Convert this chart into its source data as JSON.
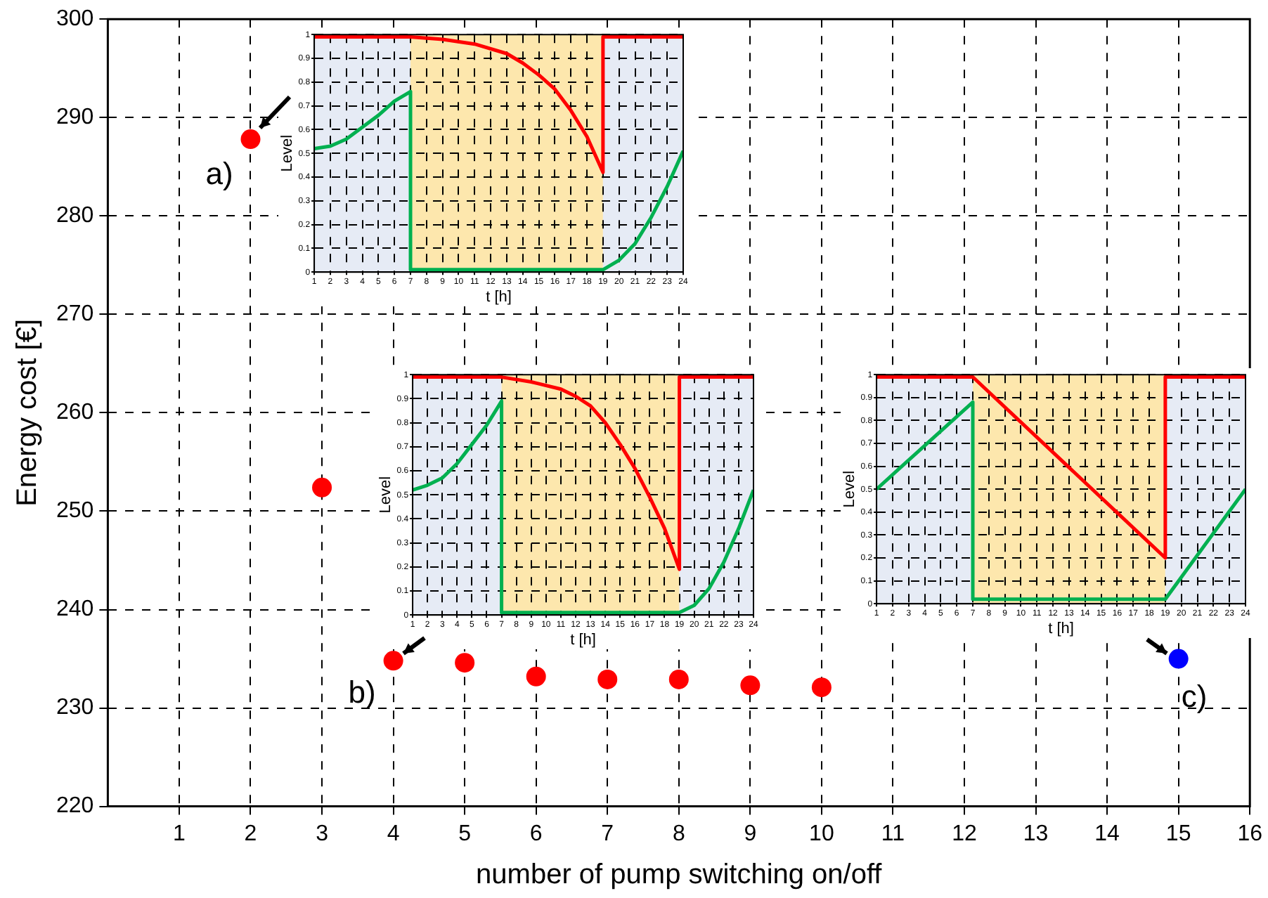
{
  "chart_data": [
    {
      "type": "scatter",
      "xlabel": "number of pump switching on/off",
      "ylabel": "Energy cost [€]",
      "x": [
        2,
        3,
        4,
        5,
        6,
        7,
        8,
        9,
        10,
        15
      ],
      "values": [
        287.8,
        252.4,
        234.8,
        234.6,
        233.2,
        232.9,
        232.9,
        232.3,
        232.1,
        235.0
      ],
      "colors": [
        "#ff0000",
        "#ff0000",
        "#ff0000",
        "#ff0000",
        "#ff0000",
        "#ff0000",
        "#ff0000",
        "#ff0000",
        "#ff0000",
        "#0000ff"
      ],
      "xlim": [
        0,
        16
      ],
      "xticks": [
        1,
        2,
        3,
        4,
        5,
        6,
        7,
        8,
        9,
        10,
        11,
        12,
        13,
        14,
        15,
        16
      ],
      "ylim": [
        220,
        300
      ],
      "yticks": [
        220,
        230,
        240,
        250,
        260,
        270,
        280,
        290,
        300
      ],
      "grid": true,
      "marker": "circle",
      "legend": false,
      "annotations": [
        {
          "text": "a)",
          "x": 2,
          "y": 287.8
        },
        {
          "text": "b)",
          "x": 4,
          "y": 234.8
        },
        {
          "text": "c)",
          "x": 15,
          "y": 235.0
        }
      ]
    },
    {
      "type": "line",
      "xlabel": "t [h]",
      "ylabel": "Level",
      "series": [
        {
          "color": "#ff0000",
          "x": [
            1,
            7,
            9,
            11,
            13,
            14,
            15,
            16,
            17,
            18,
            19,
            19,
            24
          ],
          "values": [
            0.99,
            0.99,
            0.98,
            0.96,
            0.92,
            0.88,
            0.83,
            0.77,
            0.68,
            0.57,
            0.42,
            0.99,
            0.99
          ]
        },
        {
          "color": "#00b050",
          "x": [
            1,
            2,
            3,
            4,
            5,
            6,
            7,
            7,
            19,
            20,
            21,
            22,
            23,
            24
          ],
          "values": [
            0.52,
            0.53,
            0.56,
            0.61,
            0.66,
            0.72,
            0.76,
            0.01,
            0.01,
            0.05,
            0.12,
            0.23,
            0.36,
            0.51
          ]
        }
      ],
      "xlim": [
        1,
        24
      ],
      "xticks": [
        1,
        2,
        3,
        4,
        5,
        6,
        7,
        8,
        9,
        10,
        11,
        12,
        13,
        14,
        15,
        16,
        17,
        18,
        19,
        20,
        21,
        22,
        23,
        24
      ],
      "ylim": [
        0,
        1
      ],
      "yticks": [
        0,
        0.1,
        0.2,
        0.3,
        0.4,
        0.5,
        0.6,
        0.7,
        0.8,
        0.9,
        1
      ],
      "grid": true,
      "marker": "none",
      "legend": false,
      "bands": [
        {
          "axis": "x",
          "from": 1,
          "to": 7,
          "color": "#e6ebf5"
        },
        {
          "axis": "x",
          "from": 7,
          "to": 19,
          "color": "#fde7ad"
        },
        {
          "axis": "x",
          "from": 19,
          "to": 24,
          "color": "#e6ebf5"
        }
      ]
    },
    {
      "type": "line",
      "xlabel": "t [h]",
      "ylabel": "Level",
      "series": [
        {
          "color": "#ff0000",
          "x": [
            1,
            7,
            9,
            11,
            12,
            13,
            14,
            15,
            16,
            17,
            18,
            19,
            19,
            24
          ],
          "values": [
            0.99,
            0.99,
            0.97,
            0.94,
            0.91,
            0.87,
            0.8,
            0.71,
            0.61,
            0.49,
            0.36,
            0.19,
            0.99,
            0.99
          ]
        },
        {
          "color": "#00b050",
          "x": [
            1,
            2,
            3,
            4,
            5,
            6,
            7,
            7,
            19,
            20,
            21,
            22,
            23,
            24
          ],
          "values": [
            0.52,
            0.54,
            0.57,
            0.63,
            0.71,
            0.79,
            0.89,
            0.01,
            0.01,
            0.04,
            0.11,
            0.22,
            0.36,
            0.52
          ]
        }
      ],
      "xlim": [
        1,
        24
      ],
      "xticks": [
        1,
        2,
        3,
        4,
        5,
        6,
        7,
        8,
        9,
        10,
        11,
        12,
        13,
        14,
        15,
        16,
        17,
        18,
        19,
        20,
        21,
        22,
        23,
        24
      ],
      "ylim": [
        0,
        1
      ],
      "yticks": [
        0,
        0.1,
        0.2,
        0.3,
        0.4,
        0.5,
        0.6,
        0.7,
        0.8,
        0.9,
        1
      ],
      "grid": true,
      "marker": "none",
      "legend": false,
      "bands": [
        {
          "axis": "x",
          "from": 1,
          "to": 7,
          "color": "#e6ebf5"
        },
        {
          "axis": "x",
          "from": 7,
          "to": 19,
          "color": "#fde7ad"
        },
        {
          "axis": "x",
          "from": 19,
          "to": 24,
          "color": "#e6ebf5"
        }
      ]
    },
    {
      "type": "line",
      "xlabel": "t [h]",
      "ylabel": "Level",
      "series": [
        {
          "color": "#ff0000",
          "x": [
            1,
            7,
            19,
            19,
            24
          ],
          "values": [
            0.99,
            0.99,
            0.2,
            0.99,
            0.99
          ]
        },
        {
          "color": "#00b050",
          "x": [
            1,
            7,
            7,
            19,
            24
          ],
          "values": [
            0.5,
            0.88,
            0.02,
            0.02,
            0.5
          ]
        }
      ],
      "xlim": [
        1,
        24
      ],
      "xticks": [
        1,
        2,
        3,
        4,
        5,
        6,
        7,
        8,
        9,
        10,
        11,
        12,
        13,
        14,
        15,
        16,
        17,
        18,
        19,
        20,
        21,
        22,
        23,
        24
      ],
      "ylim": [
        0,
        1
      ],
      "yticks": [
        0,
        0.1,
        0.2,
        0.3,
        0.4,
        0.5,
        0.6,
        0.7,
        0.8,
        0.9,
        1
      ],
      "grid": true,
      "marker": "none",
      "legend": false,
      "bands": [
        {
          "axis": "x",
          "from": 1,
          "to": 7,
          "color": "#e6ebf5"
        },
        {
          "axis": "x",
          "from": 7,
          "to": 19,
          "color": "#fde7ad"
        },
        {
          "axis": "x",
          "from": 19,
          "to": 24,
          "color": "#e6ebf5"
        }
      ]
    }
  ]
}
